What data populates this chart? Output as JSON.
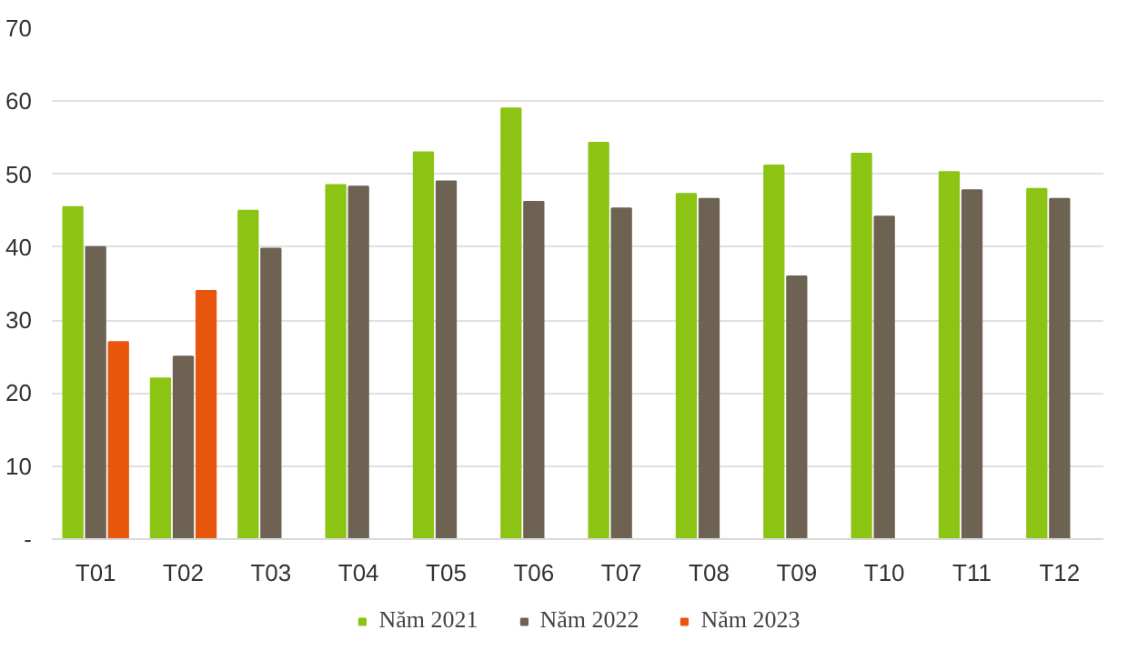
{
  "chart_data": {
    "type": "bar",
    "categories": [
      "T01",
      "T02",
      "T03",
      "T04",
      "T05",
      "T06",
      "T07",
      "T08",
      "T09",
      "T10",
      "T11",
      "T12"
    ],
    "series": [
      {
        "name": "Năm 2021",
        "color": "#8cc414",
        "values": [
          45.5,
          22,
          45,
          48.5,
          53,
          59,
          54.3,
          47.3,
          51.2,
          52.8,
          50.3,
          48
        ]
      },
      {
        "name": "Năm 2022",
        "color": "#6e6253",
        "values": [
          40,
          25,
          39.8,
          48.3,
          49,
          46.2,
          45.3,
          46.6,
          36,
          44.2,
          47.8,
          46.6
        ]
      },
      {
        "name": "Năm 2023",
        "color": "#e8560e",
        "values": [
          27,
          34,
          null,
          null,
          null,
          null,
          null,
          null,
          null,
          null,
          null,
          null
        ]
      }
    ],
    "ylim": [
      0,
      70
    ],
    "yticks": [
      {
        "value": 0,
        "label": "-"
      },
      10,
      20,
      30,
      40,
      50,
      60,
      70
    ],
    "grid": "y",
    "legend": "bottom"
  }
}
